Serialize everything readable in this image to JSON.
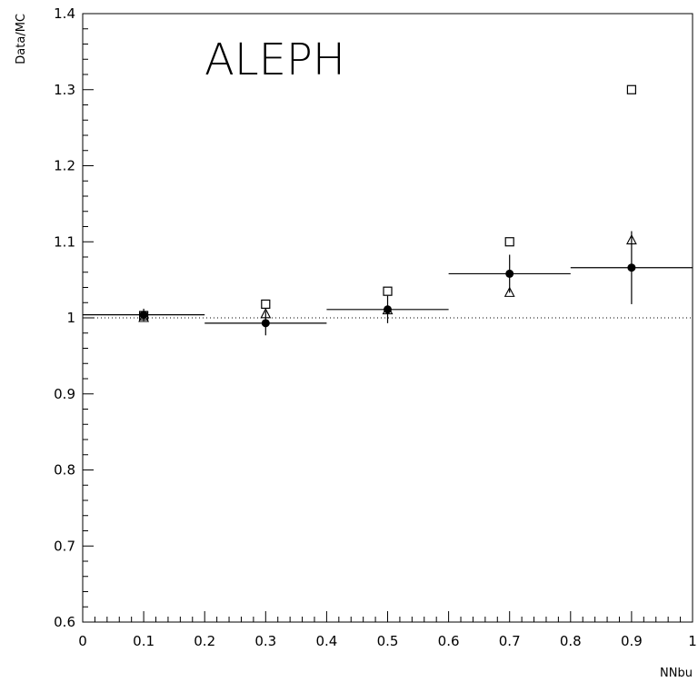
{
  "chart_data": {
    "type": "scatter",
    "title": "ALEPH",
    "xlabel": "NNbu",
    "ylabel": "Data/MC",
    "xlim": [
      0,
      1
    ],
    "ylim": [
      0.6,
      1.4
    ],
    "x_ticks": [
      "0",
      "0.1",
      "0.2",
      "0.3",
      "0.4",
      "0.5",
      "0.6",
      "0.7",
      "0.8",
      "0.9",
      "1"
    ],
    "y_ticks": [
      "0.6",
      "0.7",
      "0.8",
      "0.9",
      "1",
      "1.1",
      "1.2",
      "1.3",
      "1.4"
    ],
    "reference_line": {
      "y": 1.0,
      "style": "dotted"
    },
    "grid": false,
    "series": [
      {
        "marker": "filled-circle",
        "x": [
          0.1,
          0.3,
          0.5,
          0.7,
          0.9
        ],
        "x_err": [
          0.1,
          0.1,
          0.1,
          0.1,
          0.1
        ],
        "y": [
          1.004,
          0.993,
          1.011,
          1.058,
          1.066
        ],
        "y_err": [
          0.008,
          0.016,
          0.018,
          0.025,
          0.048
        ]
      },
      {
        "marker": "open-square",
        "x": [
          0.1,
          0.3,
          0.5,
          0.7,
          0.9
        ],
        "y": [
          1.003,
          1.018,
          1.035,
          1.1,
          1.3
        ]
      },
      {
        "marker": "open-triangle",
        "x": [
          0.1,
          0.3,
          0.5,
          0.7,
          0.9
        ],
        "y": [
          1.0,
          1.005,
          1.01,
          1.033,
          1.102
        ]
      }
    ]
  }
}
